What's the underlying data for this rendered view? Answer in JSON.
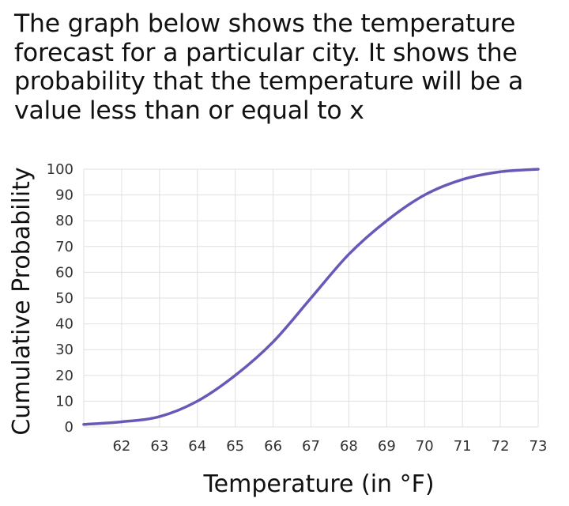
{
  "prompt": {
    "lines": [
      "The graph below shows the temperature",
      "forecast for a particular city. It shows the",
      "probability that the temperature will be a",
      "value less than or equal to x"
    ]
  },
  "colors": {
    "curve": "#6a58b8",
    "grid": "#e0e0e0",
    "text": "#333333"
  },
  "chart_data": {
    "type": "line",
    "title": "",
    "xlabel": "Temperature (in °F)",
    "ylabel": "Cumulative Probability",
    "xlim": [
      61,
      73
    ],
    "ylim": [
      0,
      100
    ],
    "xticks": [
      62,
      63,
      64,
      65,
      66,
      67,
      68,
      69,
      70,
      71,
      72,
      73
    ],
    "yticks": [
      0,
      10,
      20,
      30,
      40,
      50,
      60,
      70,
      80,
      90,
      100
    ],
    "grid": true,
    "legend": "none",
    "series": [
      {
        "x": [
          61,
          62,
          63,
          64,
          65,
          66,
          67,
          68,
          69,
          70,
          71,
          72,
          73
        ],
        "values": [
          1,
          2,
          4,
          10,
          20,
          33,
          50,
          67,
          80,
          90,
          96,
          99,
          100
        ]
      }
    ]
  }
}
